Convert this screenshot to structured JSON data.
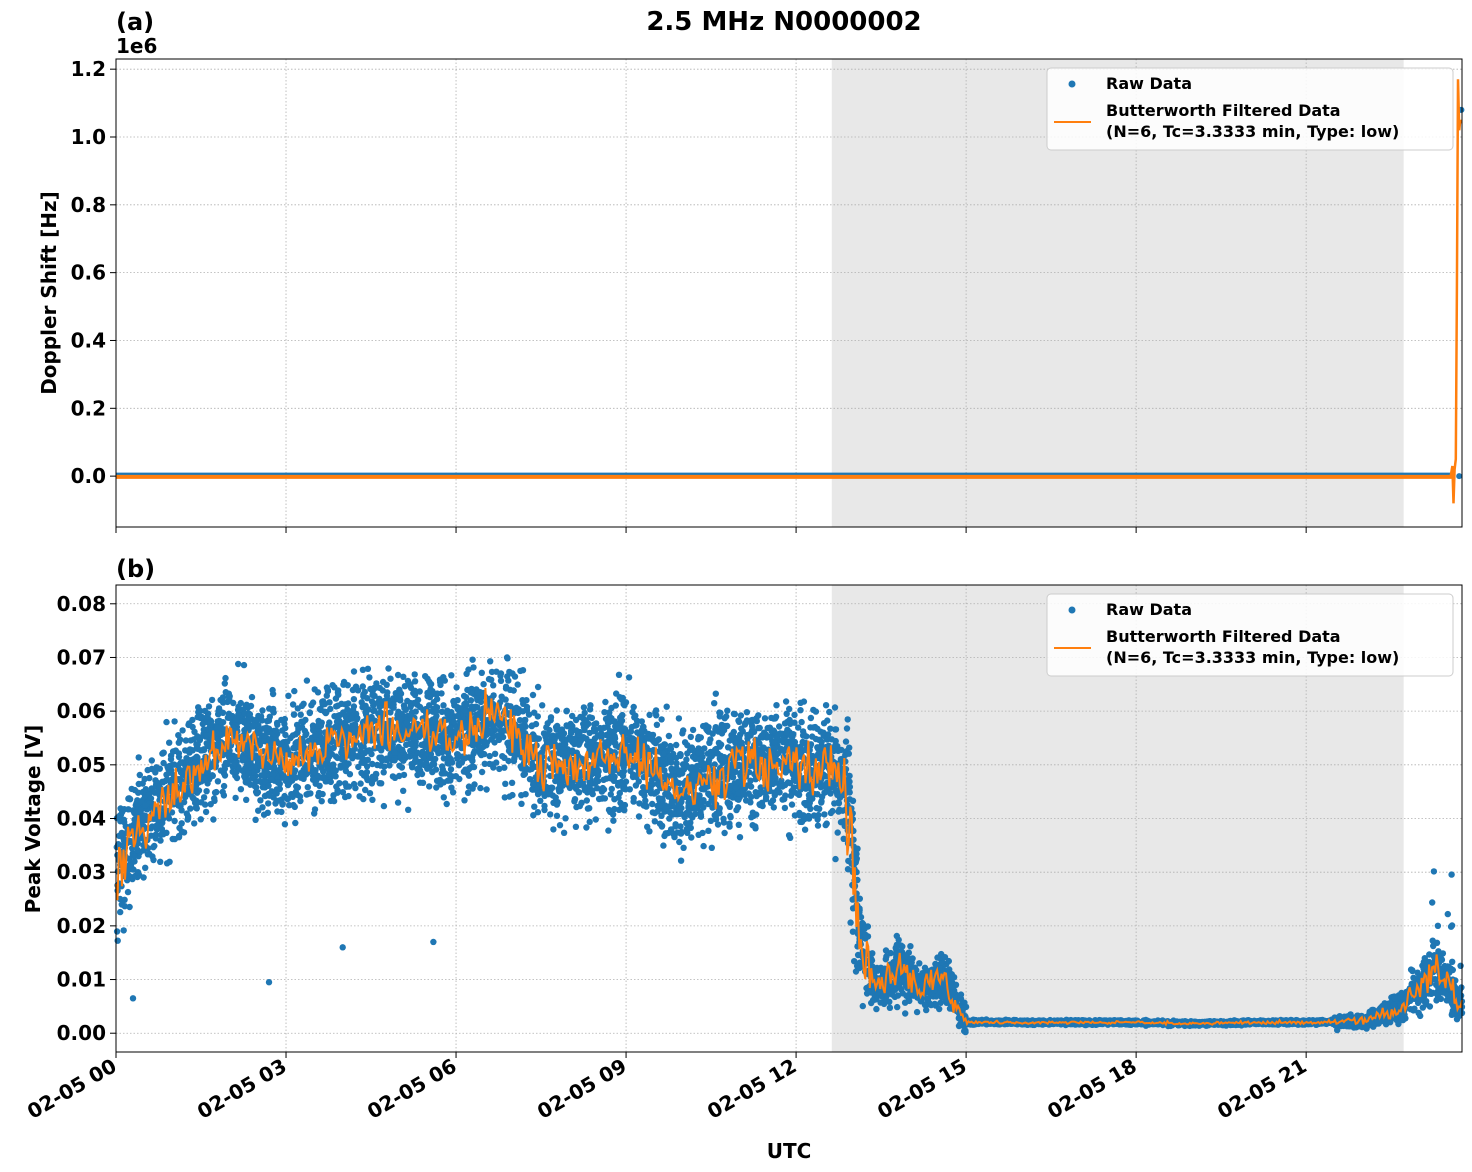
{
  "title": "2.5 MHz N0000002",
  "xlabel": "UTC",
  "x_tick_labels": [
    "02-05 00",
    "02-05 03",
    "02-05 06",
    "02-05 09",
    "02-05 12",
    "02-05 15",
    "02-05 18",
    "02-05 21"
  ],
  "x_range_hours": [
    0,
    23.75
  ],
  "shaded_region_hours": [
    12.63,
    22.72
  ],
  "colors": {
    "raw": "#1f77b4",
    "filtered": "#ff7f0e",
    "shade": "#e8e8e8",
    "grid": "#b0b0b0"
  },
  "legend": {
    "raw_label": "Raw Data",
    "filtered_label_line1": "Butterworth Filtered Data",
    "filtered_label_line2": "(N=6, Tc=3.3333 min, Type: low)",
    "placement": "upper right"
  },
  "panels": {
    "a": {
      "label": "(a)",
      "ylabel": "Doppler Shift [Hz]",
      "offset_text": "1e6",
      "y_tick_labels": [
        "0.0",
        "0.2",
        "0.4",
        "0.6",
        "0.8",
        "1.0",
        "1.2"
      ]
    },
    "b": {
      "label": "(b)",
      "ylabel": "Peak Voltage [V]",
      "y_tick_labels": [
        "0.00",
        "0.01",
        "0.02",
        "0.03",
        "0.04",
        "0.05",
        "0.06",
        "0.07",
        "0.08"
      ]
    }
  },
  "chart_data": [
    {
      "type": "line",
      "title": "2.5 MHz N0000002",
      "panel": "(a)",
      "xlabel": "UTC",
      "ylabel": "Doppler Shift [Hz]",
      "y_scale_offset": "1e6",
      "ylim": [
        -0.15,
        1.23
      ],
      "grid": true,
      "legend_placement": "upper right",
      "series": [
        {
          "name": "Raw Data",
          "style": "scatter",
          "x_hours": [
            0,
            23.7,
            23.72,
            23.74
          ],
          "y": [
            0.0,
            0.0,
            1.08,
            1.08
          ]
        },
        {
          "name": "Butterworth Filtered Data (N=6, Tc=3.3333 min, Type: low)",
          "style": "line",
          "x_hours": [
            0,
            23.55,
            23.58,
            23.6,
            23.62,
            23.64,
            23.66,
            23.68,
            23.7,
            23.72,
            23.74
          ],
          "y": [
            0.0,
            0.0,
            0.03,
            -0.08,
            0.02,
            0.05,
            0.55,
            1.17,
            1.02,
            1.05,
            1.04
          ]
        }
      ]
    },
    {
      "type": "line",
      "panel": "(b)",
      "xlabel": "UTC",
      "ylabel": "Peak Voltage [V]",
      "ylim": [
        -0.0035,
        0.0835
      ],
      "grid": true,
      "legend_placement": "upper right",
      "series": [
        {
          "name": "Raw Data",
          "style": "scatter",
          "x_hours": [
            0,
            0.5,
            1,
            1.5,
            2,
            3,
            4,
            5,
            6,
            6.7,
            7.5,
            8,
            9,
            10,
            11,
            12,
            12.5,
            12.9,
            13.1,
            13.4,
            13.8,
            14.2,
            14.6,
            15,
            16,
            17,
            18,
            19,
            20,
            21,
            22,
            22.7,
            23.3,
            23.75
          ],
          "y": [
            0.03,
            0.04,
            0.045,
            0.05,
            0.055,
            0.05,
            0.055,
            0.057,
            0.055,
            0.06,
            0.05,
            0.05,
            0.052,
            0.045,
            0.05,
            0.05,
            0.05,
            0.046,
            0.02,
            0.008,
            0.012,
            0.008,
            0.01,
            0.002,
            0.002,
            0.002,
            0.002,
            0.0018,
            0.002,
            0.002,
            0.0022,
            0.005,
            0.012,
            0.005
          ]
        },
        {
          "name": "Butterworth Filtered Data (N=6, Tc=3.3333 min, Type: low)",
          "style": "line",
          "x_hours": [
            0,
            0.5,
            1,
            1.5,
            2,
            3,
            4,
            5,
            6,
            6.7,
            7.5,
            8,
            9,
            10,
            11,
            12,
            12.5,
            12.9,
            13.1,
            13.4,
            13.8,
            14.2,
            14.6,
            15,
            16,
            17,
            18,
            19,
            20,
            21,
            22,
            22.7,
            23.3,
            23.75
          ],
          "y": [
            0.03,
            0.04,
            0.045,
            0.05,
            0.055,
            0.05,
            0.055,
            0.057,
            0.055,
            0.06,
            0.05,
            0.05,
            0.052,
            0.045,
            0.05,
            0.05,
            0.05,
            0.046,
            0.02,
            0.008,
            0.012,
            0.008,
            0.01,
            0.002,
            0.002,
            0.002,
            0.002,
            0.0018,
            0.002,
            0.002,
            0.0022,
            0.005,
            0.012,
            0.005
          ]
        }
      ]
    }
  ]
}
